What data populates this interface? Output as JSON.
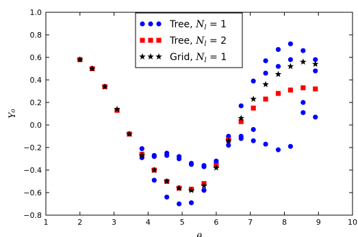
{
  "chart_data": {
    "type": "scatter",
    "xlabel": "θ",
    "ylabel": "Y₀",
    "xlim": [
      1,
      10
    ],
    "ylim": [
      -0.8,
      1.0
    ],
    "xticks": [
      "1",
      "2",
      "3",
      "4",
      "5",
      "6",
      "7",
      "8",
      "9",
      "10"
    ],
    "yticks": [
      "1.0",
      "0.8",
      "0.6",
      "0.4",
      "0.2",
      "0.0",
      "−0.2",
      "−0.4",
      "−0.6",
      "−0.8"
    ],
    "grid": false,
    "legend_position": "top-center",
    "series": [
      {
        "name": "Tree, N_l = 1",
        "label_parts": [
          "Tree, ",
          "N",
          "l",
          " = 1"
        ],
        "marker": "circle",
        "color": "#0000ff",
        "x": [
          2.0,
          2.36,
          2.73,
          3.09,
          3.45,
          3.82,
          3.82,
          3.82,
          4.18,
          4.18,
          4.18,
          4.55,
          4.55,
          4.55,
          4.91,
          4.91,
          4.91,
          5.27,
          5.27,
          5.27,
          5.64,
          5.64,
          5.64,
          6.0,
          6.0,
          6.0,
          6.36,
          6.36,
          6.36,
          6.73,
          6.73,
          6.73,
          7.09,
          7.09,
          7.09,
          7.45,
          7.45,
          7.45,
          7.82,
          7.82,
          7.82,
          8.18,
          8.18,
          8.18,
          8.55,
          8.55,
          8.55,
          8.91,
          8.91,
          8.91
        ],
        "y": [
          0.58,
          0.5,
          0.34,
          0.13,
          -0.08,
          -0.21,
          -0.29,
          -0.26,
          -0.49,
          -0.27,
          -0.28,
          -0.64,
          -0.27,
          -0.25,
          -0.7,
          -0.3,
          -0.28,
          -0.69,
          -0.35,
          -0.34,
          -0.58,
          -0.37,
          -0.36,
          -0.34,
          -0.32,
          -0.35,
          -0.18,
          -0.1,
          -0.14,
          0.17,
          -0.12,
          -0.1,
          0.39,
          -0.04,
          -0.14,
          0.57,
          -0.17,
          0.46,
          0.67,
          -0.22,
          0.52,
          0.72,
          -0.19,
          0.58,
          0.66,
          0.11,
          0.2,
          0.58,
          0.07,
          0.48
        ]
      },
      {
        "name": "Tree, N_l = 2",
        "label_parts": [
          "Tree, ",
          "N",
          "l",
          " = 2"
        ],
        "marker": "square",
        "color": "#ff0000",
        "x": [
          2.0,
          2.36,
          2.73,
          3.09,
          3.45,
          3.82,
          4.18,
          4.55,
          4.91,
          5.27,
          5.64,
          6.0,
          6.36,
          6.73,
          7.09,
          7.45,
          7.82,
          8.18,
          8.55,
          8.91
        ],
        "y": [
          0.58,
          0.5,
          0.34,
          0.13,
          -0.08,
          -0.26,
          -0.4,
          -0.5,
          -0.56,
          -0.57,
          -0.52,
          -0.36,
          -0.13,
          0.03,
          0.15,
          0.23,
          0.28,
          0.31,
          0.33,
          0.32
        ]
      },
      {
        "name": "Grid, N_l = 1",
        "label_parts": [
          "Grid, ",
          "N",
          "l",
          " = 1"
        ],
        "marker": "star",
        "color": "#000000",
        "x": [
          2.0,
          2.36,
          2.73,
          3.09,
          3.45,
          3.82,
          4.18,
          4.55,
          4.91,
          5.27,
          5.64,
          6.0,
          6.36,
          6.73,
          7.09,
          7.45,
          7.82,
          8.18,
          8.55,
          8.91
        ],
        "y": [
          0.58,
          0.5,
          0.34,
          0.14,
          -0.08,
          -0.27,
          -0.4,
          -0.5,
          -0.56,
          -0.58,
          -0.54,
          -0.38,
          -0.14,
          0.06,
          0.23,
          0.36,
          0.45,
          0.52,
          0.56,
          0.54
        ]
      }
    ]
  }
}
